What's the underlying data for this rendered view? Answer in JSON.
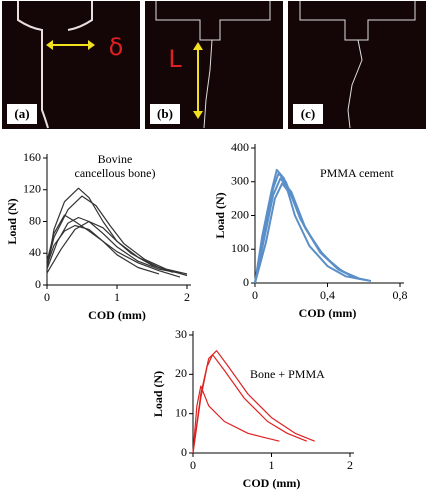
{
  "images": [
    {
      "label": "(a)",
      "symbol": "δ"
    },
    {
      "label": "(b)",
      "symbol": "L"
    },
    {
      "label": "(c)"
    }
  ],
  "chart_data": [
    {
      "type": "line",
      "annotation": [
        "Bovine",
        "cancellous bone)"
      ],
      "xlabel": "COD (mm)",
      "ylabel": "Load (N)",
      "xlim": [
        0,
        2
      ],
      "xticks": [
        0,
        1,
        2
      ],
      "ylim": [
        0,
        160
      ],
      "yticks": [
        0,
        40,
        80,
        120,
        160
      ],
      "color": "#333333",
      "series": [
        {
          "x": [
            0,
            0.1,
            0.25,
            0.45,
            0.6,
            0.8,
            1.0,
            1.3,
            1.6,
            2.0
          ],
          "values": [
            20,
            70,
            105,
            122,
            110,
            80,
            55,
            35,
            22,
            12
          ]
        },
        {
          "x": [
            0,
            0.1,
            0.3,
            0.5,
            0.7,
            0.9,
            1.1,
            1.4,
            1.7,
            2.0
          ],
          "values": [
            25,
            60,
            95,
            112,
            100,
            75,
            52,
            32,
            20,
            14
          ]
        },
        {
          "x": [
            0,
            0.1,
            0.25,
            0.4,
            0.6,
            0.8,
            1.0,
            1.3,
            1.6,
            1.9
          ],
          "values": [
            30,
            65,
            88,
            80,
            68,
            55,
            42,
            28,
            18,
            10
          ]
        },
        {
          "x": [
            0,
            0.15,
            0.3,
            0.45,
            0.6,
            0.8,
            1.0,
            1.3,
            1.6,
            1.9
          ],
          "values": [
            20,
            55,
            78,
            85,
            80,
            65,
            48,
            30,
            20,
            15
          ]
        },
        {
          "x": [
            0,
            0.2,
            0.4,
            0.6,
            0.8,
            1.0,
            1.2,
            1.5,
            1.8
          ],
          "values": [
            15,
            45,
            70,
            80,
            72,
            55,
            40,
            25,
            16
          ]
        },
        {
          "x": [
            0,
            0.1,
            0.25,
            0.4,
            0.6,
            0.8,
            1.0,
            1.3,
            1.6
          ],
          "values": [
            25,
            50,
            68,
            75,
            70,
            55,
            38,
            22,
            14
          ]
        }
      ]
    },
    {
      "type": "line",
      "annotation": [
        "PMMA cement"
      ],
      "xlabel": "COD (mm)",
      "ylabel": "Load (N)",
      "xlim": [
        0,
        0.8
      ],
      "xticks": [
        0,
        {
          "value": 0.4,
          "label": "0,4"
        },
        {
          "value": 0.8,
          "label": "0,8"
        }
      ],
      "ylim": [
        0,
        400
      ],
      "yticks": [
        0,
        100,
        200,
        300,
        400
      ],
      "color": "#5b8fc7",
      "series": [
        {
          "x": [
            0,
            0.05,
            0.1,
            0.13,
            0.17,
            0.25,
            0.35,
            0.45,
            0.55,
            0.62
          ],
          "values": [
            0,
            150,
            280,
            325,
            300,
            190,
            100,
            45,
            15,
            8
          ]
        },
        {
          "x": [
            0,
            0.05,
            0.1,
            0.14,
            0.2,
            0.28,
            0.38,
            0.48,
            0.58,
            0.64
          ],
          "values": [
            0,
            130,
            260,
            310,
            270,
            160,
            80,
            35,
            12,
            6
          ]
        },
        {
          "x": [
            0,
            0.04,
            0.09,
            0.12,
            0.16,
            0.22,
            0.3,
            0.4,
            0.5,
            0.6
          ],
          "values": [
            0,
            140,
            270,
            335,
            310,
            200,
            110,
            50,
            20,
            10
          ]
        },
        {
          "x": [
            0,
            0.06,
            0.11,
            0.15,
            0.2,
            0.27,
            0.36,
            0.46,
            0.56
          ],
          "values": [
            0,
            120,
            250,
            295,
            260,
            170,
            90,
            40,
            14
          ]
        }
      ]
    },
    {
      "type": "line",
      "annotation": [
        "Bone + PMMA"
      ],
      "xlabel": "COD (mm)",
      "ylabel": "Load (N)",
      "xlim": [
        0,
        2
      ],
      "xticks": [
        0,
        1,
        2
      ],
      "ylim": [
        0,
        30
      ],
      "yticks": [
        0,
        10,
        20,
        30
      ],
      "color": "#dd2222",
      "series": [
        {
          "x": [
            0,
            0.1,
            0.2,
            0.3,
            0.45,
            0.7,
            1.0,
            1.3,
            1.55
          ],
          "values": [
            0,
            15,
            24,
            26,
            22,
            15,
            9,
            5,
            3
          ]
        },
        {
          "x": [
            0,
            0.1,
            0.18,
            0.25,
            0.4,
            0.65,
            0.95,
            1.2,
            1.45
          ],
          "values": [
            0,
            14,
            22,
            25,
            21,
            14,
            8,
            5,
            3
          ]
        },
        {
          "x": [
            0,
            0.05,
            0.1,
            0.2,
            0.4,
            0.7,
            0.9,
            1.1
          ],
          "values": [
            0,
            12,
            17,
            12,
            8,
            5,
            4,
            3
          ]
        }
      ]
    }
  ]
}
